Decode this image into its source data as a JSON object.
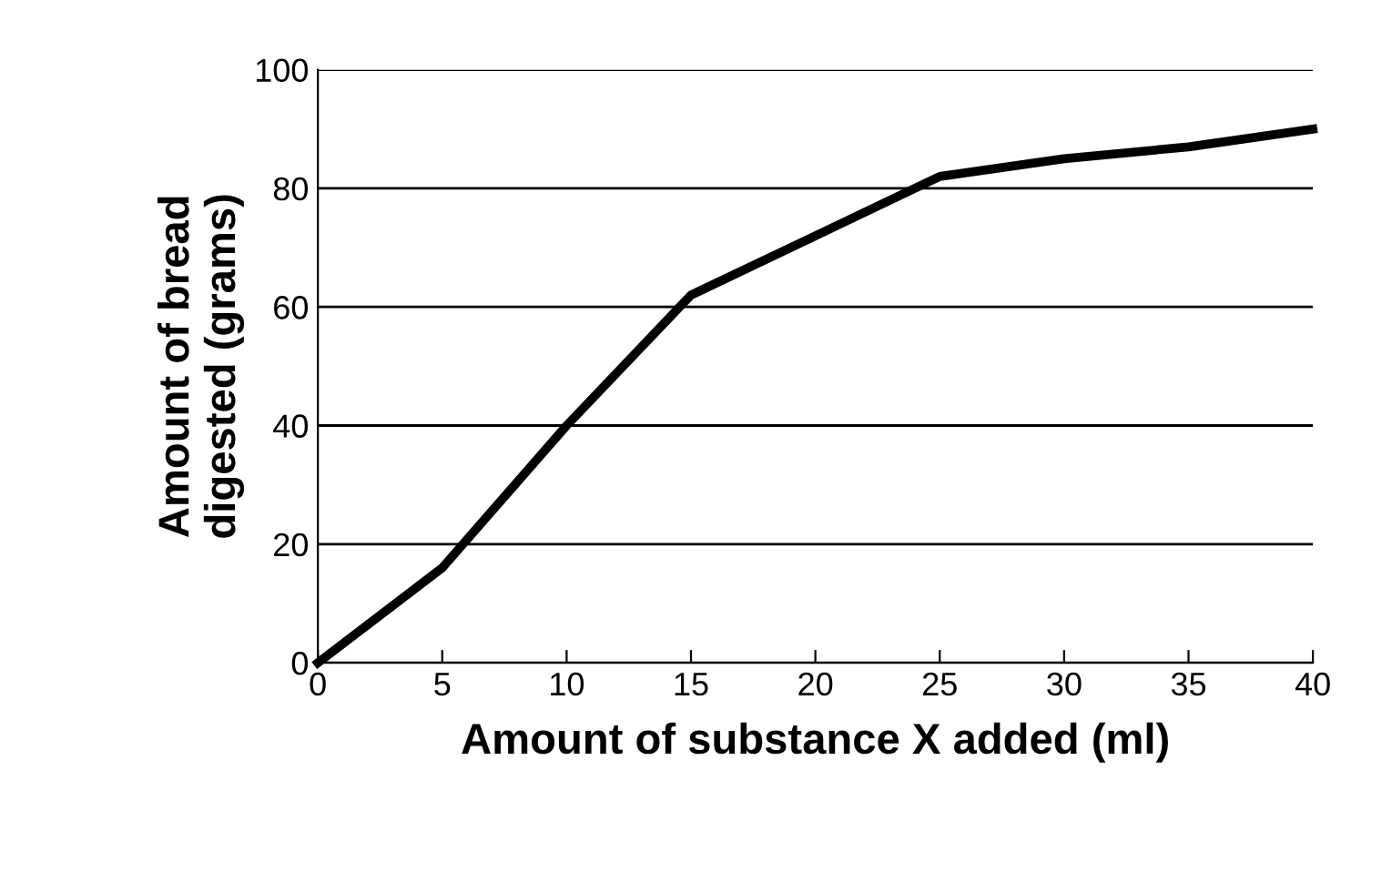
{
  "chart_data": {
    "type": "line",
    "xlabel": "Amount of substance X added (ml)",
    "ylabel": "Amount of bread\ndigested (grams)",
    "x": [
      0,
      5,
      10,
      15,
      20,
      25,
      30,
      35,
      40
    ],
    "series": [
      {
        "color": "#000000",
        "values": [
          0,
          16,
          40,
          62,
          72,
          82,
          85,
          87,
          90
        ]
      }
    ],
    "xlim": [
      0,
      40
    ],
    "ylim": [
      0,
      100
    ],
    "xticks": [
      0,
      5,
      10,
      15,
      20,
      25,
      30,
      35,
      40
    ],
    "yticks": [
      0,
      20,
      40,
      60,
      80,
      100
    ],
    "grid": "y",
    "marker": "none",
    "line_style": "solid"
  }
}
